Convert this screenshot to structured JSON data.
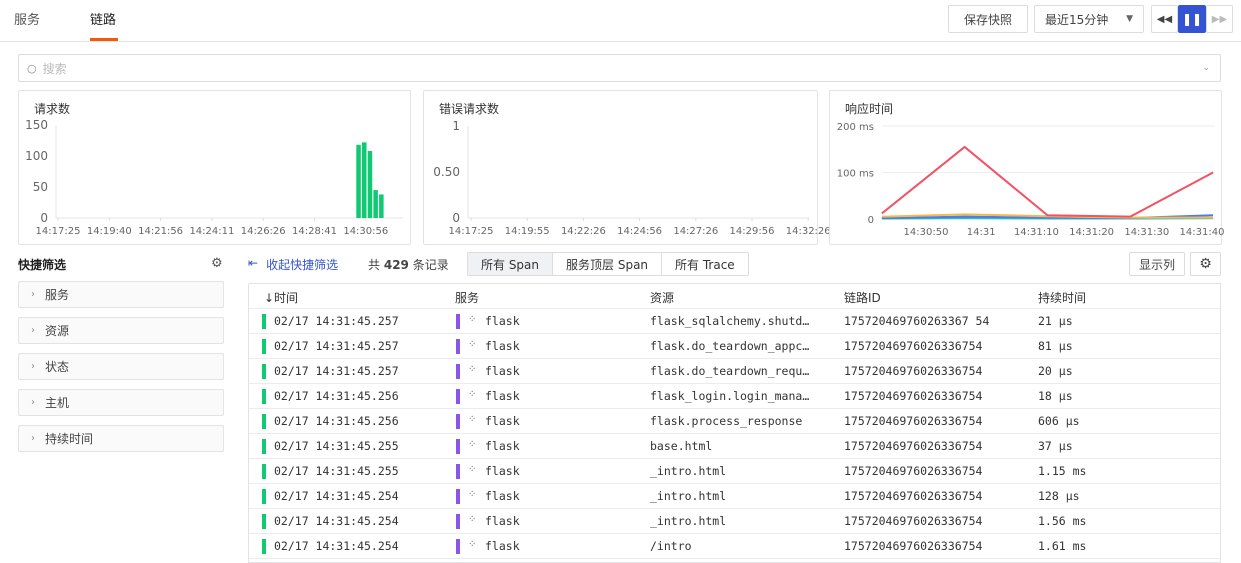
{
  "tabs": [
    {
      "label": "服务"
    },
    {
      "label": "链路",
      "active": true
    }
  ],
  "toolbar": {
    "snapshot": "保存快照",
    "time_range": "最近15分钟",
    "rewind_icon": "rewind-icon",
    "pause_icon": "pause-icon",
    "forward_icon": "fast-forward-icon"
  },
  "search": {
    "placeholder": "搜索"
  },
  "charts": {
    "requests": {
      "title": "请求数"
    },
    "errors": {
      "title": "错误请求数"
    },
    "latency": {
      "title": "响应时间"
    }
  },
  "chart_data": [
    {
      "type": "bar",
      "title": "请求数",
      "yticks": [
        "150",
        "100",
        "50",
        "0"
      ],
      "ylim": [
        0,
        150
      ],
      "xticks": [
        "14:17:25",
        "14:19:40",
        "14:21:56",
        "14:24:11",
        "14:26:26",
        "14:28:41",
        "14:30:56"
      ],
      "x": [
        "14:30:30",
        "14:30:45",
        "14:31:00",
        "14:31:15",
        "14:31:30"
      ],
      "values": [
        118,
        122,
        108,
        45,
        38
      ],
      "color": "#0fca72"
    },
    {
      "type": "line",
      "title": "错误请求数",
      "yticks": [
        "1",
        "0.50",
        "0"
      ],
      "ylim": [
        0,
        1
      ],
      "xticks": [
        "14:17:25",
        "14:19:55",
        "14:22:26",
        "14:24:56",
        "14:27:26",
        "14:29:56",
        "14:32:26"
      ],
      "series": []
    },
    {
      "type": "line",
      "title": "响应时间",
      "yticks": [
        "200 ms",
        "100 ms",
        "0"
      ],
      "ylim": [
        0,
        200
      ],
      "xticks": [
        "14:30:50",
        "14:31",
        "14:31:10",
        "14:31:20",
        "14:31:30",
        "14:31:40"
      ],
      "x": [
        "14:30:42",
        "14:30:57",
        "14:31:12",
        "14:31:27",
        "14:31:42"
      ],
      "series": [
        {
          "color": "#f25264",
          "values": [
            12,
            155,
            8,
            5,
            100
          ]
        },
        {
          "color": "#f7b84b",
          "values": [
            5,
            10,
            6,
            3,
            3
          ]
        },
        {
          "color": "#4a7cf0",
          "values": [
            2,
            5,
            3,
            2,
            8
          ]
        },
        {
          "color": "#1fc2c2",
          "values": [
            1,
            2,
            1,
            1,
            2
          ]
        }
      ]
    }
  ],
  "filters": {
    "title": "快捷筛选",
    "items": [
      "服务",
      "资源",
      "状态",
      "主机",
      "持续时间"
    ]
  },
  "list": {
    "collapse": "收起快捷筛选",
    "count_prefix": "共",
    "count": "429",
    "count_suffix": "条记录",
    "segments": [
      "所有 Span",
      "服务顶层 Span",
      "所有 Trace"
    ],
    "columns_button": "显示列",
    "headers": [
      "↓时间",
      "服务",
      "资源",
      "链路ID",
      "持续时间"
    ],
    "rows": [
      [
        "02/17 14:31:45.257",
        "flask",
        "flask_sqlalchemy.shutd…",
        "175720469760263367 54",
        "21 µs"
      ],
      [
        "02/17 14:31:45.257",
        "flask",
        "flask.do_teardown_appc…",
        "17572046976026336754",
        "81 µs"
      ],
      [
        "02/17 14:31:45.257",
        "flask",
        "flask.do_teardown_requ…",
        "17572046976026336754",
        "20 µs"
      ],
      [
        "02/17 14:31:45.256",
        "flask",
        "flask_login.login_mana…",
        "17572046976026336754",
        "18 µs"
      ],
      [
        "02/17 14:31:45.256",
        "flask",
        "flask.process_response",
        "17572046976026336754",
        "606 µs"
      ],
      [
        "02/17 14:31:45.255",
        "flask",
        "base.html",
        "17572046976026336754",
        "37 µs"
      ],
      [
        "02/17 14:31:45.255",
        "flask",
        "_intro.html",
        "17572046976026336754",
        "1.15 ms"
      ],
      [
        "02/17 14:31:45.254",
        "flask",
        "_intro.html",
        "17572046976026336754",
        "128 µs"
      ],
      [
        "02/17 14:31:45.254",
        "flask",
        "_intro.html",
        "17572046976026336754",
        "1.56 ms"
      ],
      [
        "02/17 14:31:45.254",
        "flask",
        "/intro",
        "17572046976026336754",
        "1.61 ms"
      ]
    ]
  }
}
